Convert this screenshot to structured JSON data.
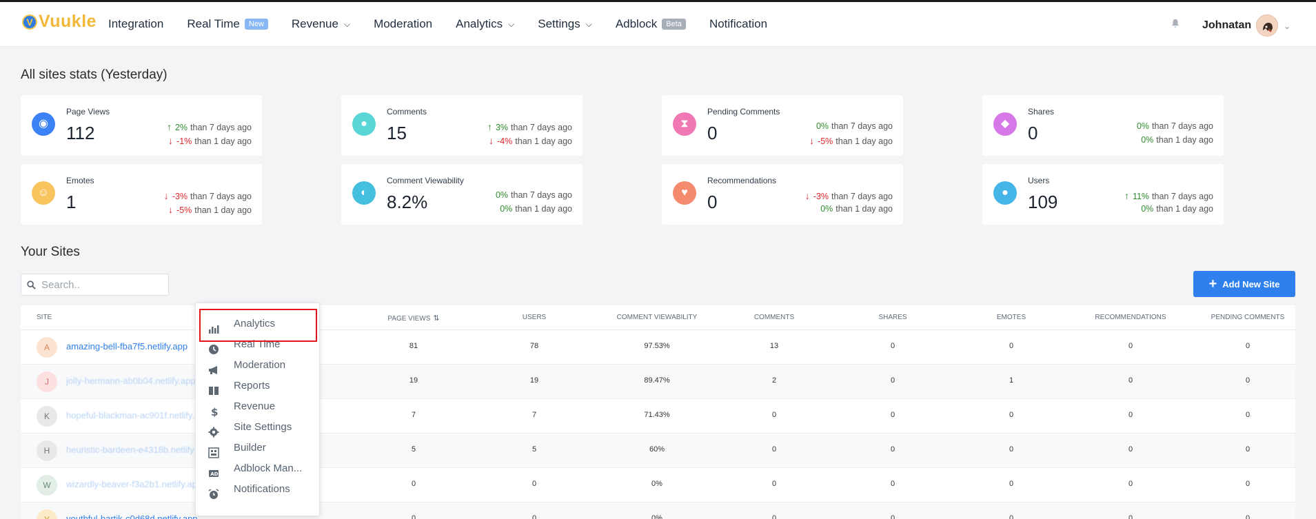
{
  "brand": {
    "logo_letter": "V",
    "logo_text": "Vuukle"
  },
  "nav": {
    "items": [
      {
        "label": "Integration",
        "badge": "",
        "has_chevron": false
      },
      {
        "label": "Real Time",
        "badge": "New",
        "has_chevron": false
      },
      {
        "label": "Revenue",
        "badge": "",
        "has_chevron": true
      },
      {
        "label": "Moderation",
        "badge": "",
        "has_chevron": false
      },
      {
        "label": "Analytics",
        "badge": "",
        "has_chevron": true
      },
      {
        "label": "Settings",
        "badge": "",
        "has_chevron": true
      },
      {
        "label": "Adblock",
        "badge": "Beta",
        "has_chevron": false
      },
      {
        "label": "Notification",
        "badge": "",
        "has_chevron": false
      }
    ],
    "user_name": "Johnatan"
  },
  "stats": {
    "title": "All sites stats (Yesterday)",
    "cards": [
      {
        "label": "Page Views",
        "value": "112",
        "icon": "eye-icon",
        "color": "#3b82f6",
        "week": {
          "dir": "up",
          "pct": "2%",
          "text": "than 7 days ago"
        },
        "day": {
          "dir": "down",
          "pct": "-1%",
          "text": "than 1 day ago"
        }
      },
      {
        "label": "Comments",
        "value": "15",
        "icon": "comments-icon",
        "color": "#5bd6d6",
        "week": {
          "dir": "up",
          "pct": "3%",
          "text": "than 7 days ago"
        },
        "day": {
          "dir": "down",
          "pct": "-4%",
          "text": "than 1 day ago"
        }
      },
      {
        "label": "Pending Comments",
        "value": "0",
        "icon": "hourglass-icon",
        "color": "#f078b4",
        "week": {
          "dir": "neutral",
          "pct": "0%",
          "text": "than 7 days ago"
        },
        "day": {
          "dir": "down",
          "pct": "-5%",
          "text": "than 1 day ago"
        }
      },
      {
        "label": "Shares",
        "value": "0",
        "icon": "share-icon",
        "color": "#d678e8",
        "week": {
          "dir": "neutral",
          "pct": "0%",
          "text": "than 7 days ago"
        },
        "day": {
          "dir": "neutral",
          "pct": "0%",
          "text": "than 1 day ago"
        }
      },
      {
        "label": "Emotes",
        "value": "1",
        "icon": "smile-icon",
        "color": "#f7c45e",
        "week": {
          "dir": "down",
          "pct": "-3%",
          "text": "than 7 days ago"
        },
        "day": {
          "dir": "down",
          "pct": "-5%",
          "text": "than 1 day ago"
        }
      },
      {
        "label": "Comment Viewability",
        "value": "8.2%",
        "icon": "viewability-icon",
        "color": "#45bfe0",
        "week": {
          "dir": "neutral",
          "pct": "0%",
          "text": "than 7 days ago"
        },
        "day": {
          "dir": "neutral",
          "pct": "0%",
          "text": "than 1 day ago"
        }
      },
      {
        "label": "Recommendations",
        "value": "0",
        "icon": "heart-icon",
        "color": "#f58b6e",
        "week": {
          "dir": "down",
          "pct": "-3%",
          "text": "than 7 days ago"
        },
        "day": {
          "dir": "neutral",
          "pct": "0%",
          "text": "than 1 day ago"
        }
      },
      {
        "label": "Users",
        "value": "109",
        "icon": "user-icon",
        "color": "#45b5e8",
        "week": {
          "dir": "up",
          "pct": "11%",
          "text": "than 7 days ago"
        },
        "day": {
          "dir": "neutral",
          "pct": "0%",
          "text": "than 1 day ago"
        }
      }
    ]
  },
  "sites": {
    "title": "Your Sites",
    "search_placeholder": "Search..",
    "add_button": "Add New Site",
    "columns": [
      "SITE",
      "PAGE VIEWS",
      "USERS",
      "COMMENT VIEWABILITY",
      "COMMENTS",
      "SHARES",
      "EMOTES",
      "RECOMMENDATIONS",
      "PENDING COMMENTS"
    ],
    "sort_glyph": "⇅",
    "rows": [
      {
        "letter": "A",
        "color": "#fbe3d2",
        "fg": "#d9855a",
        "name": "amazing-bell-fba7f5.netlify.app",
        "faded": false,
        "page_views": "81",
        "users": "78",
        "viewability": "97.53%",
        "comments": "13",
        "shares": "0",
        "emotes": "0",
        "recommendations": "0",
        "pending": "0"
      },
      {
        "letter": "J",
        "color": "#fde0e0",
        "fg": "#d96b6b",
        "name": "jolly-hermann-ab0b04.netlify.app",
        "faded": true,
        "page_views": "19",
        "users": "19",
        "viewability": "89.47%",
        "comments": "2",
        "shares": "0",
        "emotes": "1",
        "recommendations": "0",
        "pending": "0"
      },
      {
        "letter": "K",
        "color": "#e6e8ea",
        "fg": "#777",
        "name": "hopeful-blackman-ac901f.netlify.app",
        "faded": true,
        "page_views": "7",
        "users": "7",
        "viewability": "71.43%",
        "comments": "0",
        "shares": "0",
        "emotes": "0",
        "recommendations": "0",
        "pending": "0"
      },
      {
        "letter": "H",
        "color": "#e6e8ea",
        "fg": "#777",
        "name": "heuristic-bardeen-e4318b.netlify.app",
        "faded": true,
        "page_views": "5",
        "users": "5",
        "viewability": "60%",
        "comments": "0",
        "shares": "0",
        "emotes": "0",
        "recommendations": "0",
        "pending": "0"
      },
      {
        "letter": "W",
        "color": "#e3efe6",
        "fg": "#6a8b72",
        "name": "wizardly-beaver-f3a2b1.netlify.app",
        "faded": true,
        "page_views": "0",
        "users": "0",
        "viewability": "0%",
        "comments": "0",
        "shares": "0",
        "emotes": "0",
        "recommendations": "0",
        "pending": "0"
      },
      {
        "letter": "Y",
        "color": "#fcebc6",
        "fg": "#c99a3a",
        "name": "youthful-bartik-c0d68d.netlify.app",
        "faded": false,
        "page_views": "0",
        "users": "0",
        "viewability": "0%",
        "comments": "0",
        "shares": "0",
        "emotes": "0",
        "recommendations": "0",
        "pending": "0"
      }
    ]
  },
  "dropdown": {
    "items": [
      {
        "label": "Analytics",
        "icon": "bar-chart-icon"
      },
      {
        "label": "Real Time",
        "icon": "clock-icon"
      },
      {
        "label": "Moderation",
        "icon": "megaphone-icon"
      },
      {
        "label": "Reports",
        "icon": "book-icon"
      },
      {
        "label": "Revenue",
        "icon": "dollar-icon"
      },
      {
        "label": "Site Settings",
        "icon": "gear-icon"
      },
      {
        "label": "Builder",
        "icon": "builder-icon"
      },
      {
        "label": "Adblock Man...",
        "icon": "ad-icon"
      },
      {
        "label": "Notifications",
        "icon": "alarm-icon"
      }
    ]
  },
  "colors": {
    "accent": "#2f80ed",
    "up": "#2e8b2e",
    "down": "#e0262b",
    "highlight": "#e4141b"
  }
}
